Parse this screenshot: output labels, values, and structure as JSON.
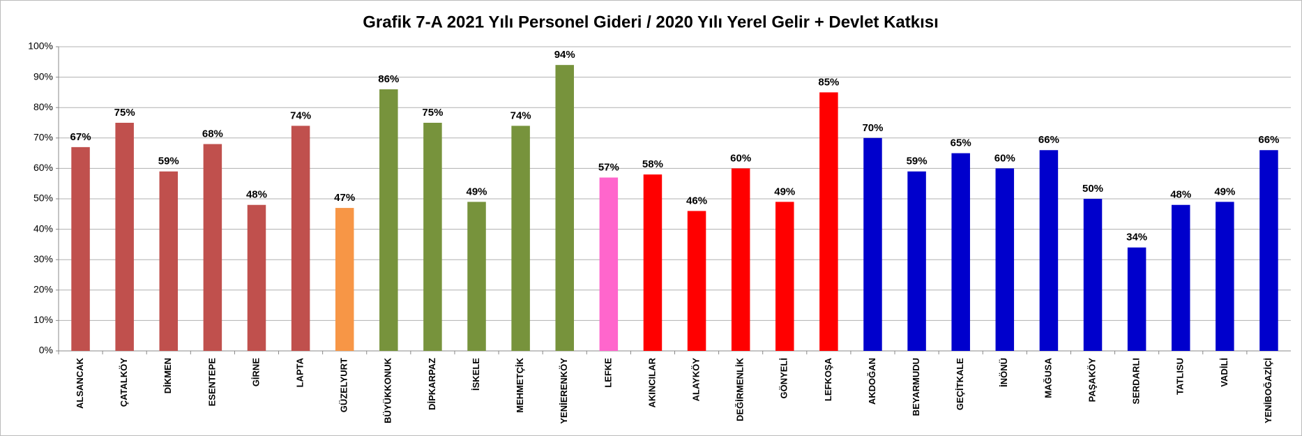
{
  "chart_data": {
    "type": "bar",
    "title": "Grafik 7-A 2021 Yılı Personel Gideri / 2020 Yılı Yerel Gelir + Devlet Katkısı",
    "categories": [
      "ALSANCAK",
      "ÇATALKÖY",
      "DİKMEN",
      "ESENTEPE",
      "GİRNE",
      "LAPTA",
      "GÜZELYURT",
      "BÜYÜKKONUK",
      "DİPKARPAZ",
      "İSKELE",
      "MEHMETÇİK",
      "YENİERENKÖY",
      "LEFKE",
      "AKINCILAR",
      "ALAYKÖY",
      "DEĞİRMENLİK",
      "GÖNYELİ",
      "LEFKOŞA",
      "AKDOĞAN",
      "BEYARMUDU",
      "GEÇİTKALE",
      "İNÖNÜ",
      "MAĞUSA",
      "PAŞAKÖY",
      "SERDARLI",
      "TATLISU",
      "VADİLİ",
      "YENİBOĞAZİÇİ"
    ],
    "values": [
      67,
      75,
      59,
      68,
      48,
      74,
      47,
      86,
      75,
      49,
      74,
      94,
      57,
      58,
      46,
      60,
      49,
      85,
      70,
      59,
      65,
      60,
      66,
      50,
      34,
      48,
      49,
      66
    ],
    "value_labels": [
      "67%",
      "75%",
      "59%",
      "68%",
      "48%",
      "74%",
      "47%",
      "86%",
      "75%",
      "49%",
      "74%",
      "94%",
      "57%",
      "58%",
      "46%",
      "60%",
      "49%",
      "85%",
      "70%",
      "59%",
      "65%",
      "60%",
      "66%",
      "50%",
      "34%",
      "48%",
      "49%",
      "66%"
    ],
    "colors": [
      "#c0504d",
      "#c0504d",
      "#c0504d",
      "#c0504d",
      "#c0504d",
      "#c0504d",
      "#f79646",
      "#77933c",
      "#77933c",
      "#77933c",
      "#77933c",
      "#77933c",
      "#ff66cc",
      "#ff0000",
      "#ff0000",
      "#ff0000",
      "#ff0000",
      "#ff0000",
      "#0000cc",
      "#0000cc",
      "#0000cc",
      "#0000cc",
      "#0000cc",
      "#0000cc",
      "#0000cc",
      "#0000cc",
      "#0000cc",
      "#0000cc"
    ],
    "ylim": [
      0,
      100
    ],
    "yticks": [
      {
        "value": 0,
        "label": "0%"
      },
      {
        "value": 10,
        "label": "10%"
      },
      {
        "value": 20,
        "label": "20%"
      },
      {
        "value": 30,
        "label": "30%"
      },
      {
        "value": 40,
        "label": "40%"
      },
      {
        "value": 50,
        "label": "50%"
      },
      {
        "value": 60,
        "label": "60%"
      },
      {
        "value": 70,
        "label": "70%"
      },
      {
        "value": 80,
        "label": "80%"
      },
      {
        "value": 90,
        "label": "90%"
      },
      {
        "value": 100,
        "label": "100%"
      }
    ],
    "grid": true
  }
}
